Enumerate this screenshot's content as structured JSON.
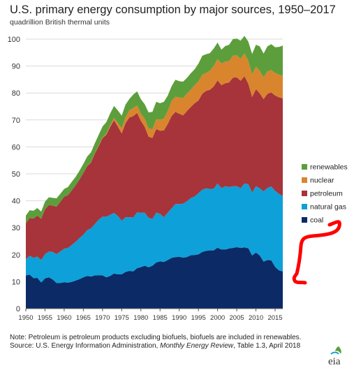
{
  "title": "U.S. primary energy consumption by major sources, 1950–2017",
  "subtitle": "quadrillion British thermal units",
  "note": "Note: Petroleum is petroleum products excluding biofuels, biofuels are included in renewables.",
  "source_prefix": "Source: U.S. Energy Information Administration, ",
  "source_title": "Monthly Energy Review",
  "source_suffix": ", Table 1.3, April 2018",
  "logo_text": "eia",
  "colors": {
    "coal": "#0b2a66",
    "natural_gas": "#0ea0d8",
    "petroleum": "#a6343a",
    "nuclear": "#d9852e",
    "renewables": "#5d9e3c",
    "annotation": "#ff0000"
  },
  "chart_data": {
    "type": "area",
    "stacked": true,
    "x_range": [
      1950,
      2017
    ],
    "ylim": [
      0,
      100
    ],
    "yticks": [
      0,
      10,
      20,
      30,
      40,
      50,
      60,
      70,
      80,
      90,
      100
    ],
    "xticks": [
      1950,
      1955,
      1960,
      1965,
      1970,
      1975,
      1980,
      1985,
      1990,
      1995,
      2000,
      2005,
      2010,
      2015
    ],
    "grid": true,
    "legend_position": "right",
    "x": [
      1950,
      1951,
      1952,
      1953,
      1954,
      1955,
      1956,
      1957,
      1958,
      1959,
      1960,
      1961,
      1962,
      1963,
      1964,
      1965,
      1966,
      1967,
      1968,
      1969,
      1970,
      1971,
      1972,
      1973,
      1974,
      1975,
      1976,
      1977,
      1978,
      1979,
      1980,
      1981,
      1982,
      1983,
      1984,
      1985,
      1986,
      1987,
      1988,
      1989,
      1990,
      1991,
      1992,
      1993,
      1994,
      1995,
      1996,
      1997,
      1998,
      1999,
      2000,
      2001,
      2002,
      2003,
      2004,
      2005,
      2006,
      2007,
      2008,
      2009,
      2010,
      2011,
      2012,
      2013,
      2014,
      2015,
      2016,
      2017
    ],
    "series": [
      {
        "name": "coal",
        "values": [
          12.3,
          12.6,
          11.3,
          11.4,
          9.7,
          11.2,
          11.6,
          10.8,
          9.5,
          9.5,
          9.8,
          9.6,
          9.9,
          10.4,
          10.9,
          11.6,
          12.1,
          11.9,
          12.3,
          12.4,
          12.3,
          11.6,
          12.1,
          13.0,
          12.7,
          12.7,
          13.6,
          14.0,
          13.8,
          15.0,
          15.4,
          15.9,
          15.3,
          15.9,
          17.1,
          17.5,
          17.3,
          18.0,
          18.8,
          19.1,
          19.2,
          18.9,
          19.1,
          19.8,
          19.9,
          20.1,
          21.0,
          21.4,
          21.6,
          21.6,
          22.6,
          21.9,
          21.9,
          22.3,
          22.5,
          22.8,
          22.5,
          22.7,
          22.4,
          19.7,
          20.8,
          19.7,
          17.4,
          18.0,
          17.9,
          15.5,
          14.2,
          13.8
        ]
      },
      {
        "name": "natural gas",
        "values": [
          6.0,
          7.0,
          7.5,
          7.9,
          8.3,
          9.0,
          9.6,
          10.2,
          10.7,
          11.7,
          12.4,
          12.9,
          13.7,
          14.4,
          15.3,
          15.8,
          17.0,
          17.9,
          19.1,
          20.6,
          21.8,
          22.5,
          22.7,
          22.5,
          21.7,
          19.9,
          20.3,
          19.9,
          20.0,
          20.7,
          20.2,
          19.7,
          18.4,
          17.3,
          18.5,
          17.7,
          16.6,
          17.6,
          18.4,
          19.7,
          19.6,
          20.0,
          20.7,
          21.2,
          21.7,
          22.7,
          23.1,
          23.2,
          22.8,
          22.9,
          23.8,
          22.8,
          23.5,
          22.8,
          22.9,
          22.6,
          22.2,
          23.7,
          23.8,
          23.4,
          24.6,
          24.9,
          26.1,
          26.8,
          27.4,
          28.2,
          28.4,
          28.0
        ]
      },
      {
        "name": "petroleum",
        "values": [
          13.3,
          14.0,
          14.6,
          15.2,
          15.3,
          16.7,
          17.2,
          17.2,
          17.6,
          18.4,
          19.3,
          19.6,
          20.3,
          21.0,
          21.7,
          22.9,
          23.8,
          24.4,
          26.2,
          27.3,
          29.2,
          30.4,
          32.6,
          34.4,
          33.1,
          32.4,
          34.9,
          37.0,
          37.6,
          36.9,
          34.0,
          31.8,
          30.1,
          30.1,
          31.0,
          30.8,
          32.2,
          32.9,
          34.2,
          34.2,
          33.5,
          32.8,
          33.5,
          33.8,
          34.6,
          34.4,
          35.6,
          36.2,
          36.8,
          37.9,
          38.3,
          38.2,
          38.2,
          38.8,
          40.3,
          40.4,
          39.8,
          39.8,
          37.3,
          35.4,
          36.0,
          35.3,
          34.2,
          34.9,
          34.9,
          35.4,
          35.8,
          36.2
        ]
      },
      {
        "name": "nuclear",
        "values": [
          0,
          0,
          0,
          0,
          0,
          0,
          0,
          0,
          0,
          0,
          0,
          0,
          0,
          0,
          0,
          0,
          0.1,
          0.1,
          0.1,
          0.2,
          0.2,
          0.4,
          0.6,
          0.9,
          1.3,
          1.9,
          2.1,
          2.7,
          3.0,
          2.8,
          2.7,
          3.0,
          3.1,
          3.2,
          3.6,
          4.1,
          4.4,
          4.8,
          5.6,
          5.6,
          6.1,
          6.4,
          6.5,
          6.4,
          6.7,
          7.1,
          7.1,
          6.6,
          7.1,
          7.6,
          7.9,
          8.0,
          8.1,
          7.9,
          8.2,
          8.2,
          8.2,
          8.5,
          8.4,
          8.4,
          8.4,
          8.3,
          8.1,
          8.3,
          8.3,
          8.3,
          8.4,
          8.4
        ]
      },
      {
        "name": "renewables",
        "values": [
          2.9,
          2.9,
          2.9,
          2.8,
          2.7,
          2.8,
          2.9,
          2.9,
          3.1,
          3.0,
          2.9,
          3.0,
          3.2,
          3.1,
          3.3,
          3.4,
          3.4,
          3.7,
          3.7,
          4.0,
          4.1,
          4.3,
          4.4,
          4.4,
          4.7,
          4.7,
          4.8,
          4.2,
          5.0,
          5.2,
          5.4,
          5.4,
          5.9,
          6.5,
          6.5,
          6.1,
          6.2,
          5.7,
          5.5,
          6.3,
          6.0,
          6.1,
          5.8,
          6.1,
          5.9,
          6.6,
          7.0,
          7.0,
          6.5,
          6.5,
          6.1,
          5.2,
          5.7,
          6.1,
          6.1,
          6.2,
          6.7,
          6.5,
          7.2,
          7.6,
          8.1,
          9.1,
          8.8,
          9.3,
          9.6,
          9.6,
          10.3,
          11.2
        ]
      }
    ],
    "legend": [
      "renewables",
      "nuclear",
      "petroleum",
      "natural gas",
      "coal"
    ]
  }
}
